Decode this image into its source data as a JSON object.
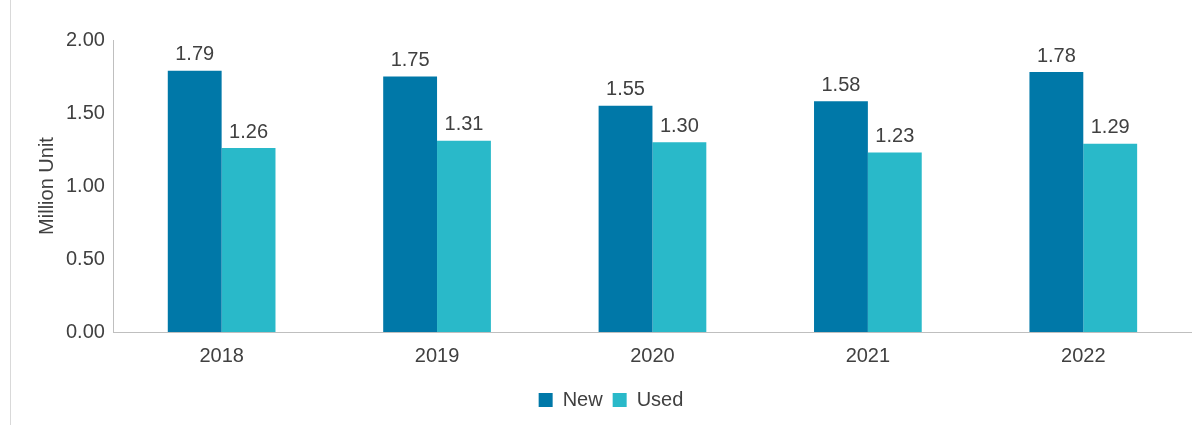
{
  "chart_data": {
    "type": "bar",
    "ylabel": "Million Unit",
    "categories": [
      "2018",
      "2019",
      "2020",
      "2021",
      "2022"
    ],
    "series": [
      {
        "name": "New",
        "color": "#0078a8",
        "values": [
          1.79,
          1.75,
          1.55,
          1.58,
          1.78
        ],
        "value_labels": [
          "1.79",
          "1.75",
          "1.55",
          "1.58",
          "1.78"
        ]
      },
      {
        "name": "Used",
        "color": "#29b9c9",
        "values": [
          1.26,
          1.31,
          1.3,
          1.23,
          1.29
        ],
        "value_labels": [
          "1.26",
          "1.31",
          "1.30",
          "1.23",
          "1.29"
        ]
      }
    ],
    "ylim": [
      0,
      2
    ],
    "yticks": [
      {
        "value": 0,
        "label": "0.00"
      },
      {
        "value": 0.5,
        "label": "0.50"
      },
      {
        "value": 1,
        "label": "1.00"
      },
      {
        "value": 1.5,
        "label": "1.50"
      },
      {
        "value": 2,
        "label": "2.00"
      }
    ],
    "grid": false,
    "legend": "bottom"
  }
}
